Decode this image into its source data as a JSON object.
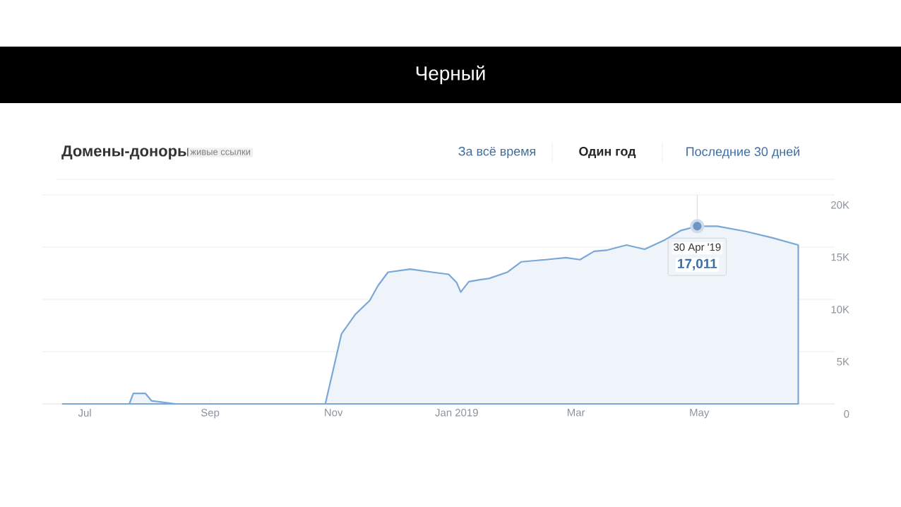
{
  "chart_data": {
    "type": "area",
    "title": "Черный",
    "subtitle": "Домены-доноры",
    "annotations": [
      "живые ссылки",
      "За всё время",
      "Один год",
      "Последние 30 дней",
      {
        "text": "30 Apr '19",
        "x": "2019-04-30",
        "y": 17011
      },
      {
        "text": "17,011",
        "x": "2019-04-30",
        "y": 17011
      }
    ],
    "x": [
      "2018-06-20",
      "2018-07-23",
      "2018-07-25",
      "2018-07-31",
      "2018-08-03",
      "2018-08-15",
      "2018-10-28",
      "2018-11-05",
      "2018-11-12",
      "2018-11-19",
      "2018-11-23",
      "2018-11-28",
      "2018-12-09",
      "2018-12-20",
      "2018-12-28",
      "2019-01-01",
      "2019-01-03",
      "2019-01-07",
      "2019-01-13",
      "2019-01-17",
      "2019-01-26",
      "2019-02-02",
      "2019-02-14",
      "2019-02-24",
      "2019-03-03",
      "2019-03-10",
      "2019-03-16",
      "2019-03-26",
      "2019-04-04",
      "2019-04-14",
      "2019-04-22",
      "2019-04-30",
      "2019-05-10",
      "2019-05-24",
      "2019-06-06",
      "2019-06-19"
    ],
    "series": [
      {
        "color": "#7ba7d7",
        "values": [
          0,
          0,
          1000,
          1000,
          300,
          0,
          0,
          6700,
          8600,
          9900,
          11300,
          12600,
          12900,
          12600,
          12400,
          11600,
          10700,
          11700,
          11900,
          12000,
          12600,
          13600,
          13800,
          14000,
          13800,
          14600,
          14700,
          15200,
          14800,
          15700,
          16600,
          17011,
          17000,
          16500,
          15900,
          15200
        ]
      }
    ],
    "xlim": [
      "2018-06-10",
      "2019-07-07"
    ],
    "xticks": [
      {
        "value": "2018-07-01",
        "label": "Jul"
      },
      {
        "value": "2018-09-01",
        "label": "Sep"
      },
      {
        "value": "2018-11-01",
        "label": "Nov"
      },
      {
        "value": "2019-01-01",
        "label": "Jan 2019"
      },
      {
        "value": "2019-03-01",
        "label": "Mar"
      },
      {
        "value": "2019-05-01",
        "label": "May"
      }
    ],
    "ylim": [
      0,
      20000
    ],
    "yticks": [
      0,
      {
        "value": 5000,
        "label": "5K"
      },
      {
        "value": 10000,
        "label": "10K"
      },
      {
        "value": 15000,
        "label": "15K"
      },
      {
        "value": 20000,
        "label": "20K"
      }
    ],
    "ref_lines": [
      {
        "axis": "x",
        "value": "2019-04-30",
        "color": "#c5cfd9"
      }
    ],
    "grid": "y"
  }
}
